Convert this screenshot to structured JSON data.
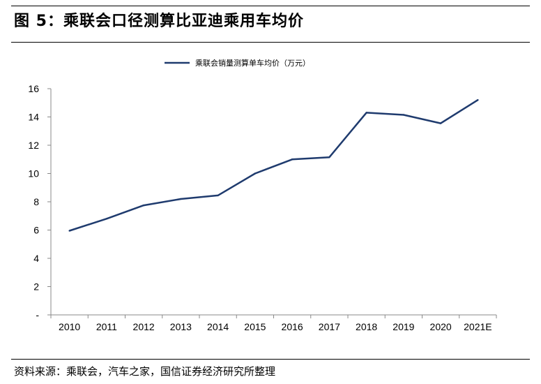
{
  "figure": {
    "title": "图 5：乘联会口径测算比亚迪乘用车均价",
    "source": "资料来源：乘联会，汽车之家，国信证券经济研究所整理"
  },
  "chart_data": {
    "type": "line",
    "categories": [
      "2010",
      "2011",
      "2012",
      "2013",
      "2014",
      "2015",
      "2016",
      "2017",
      "2018",
      "2019",
      "2020",
      "2021E"
    ],
    "series": [
      {
        "name": "乘联会销量测算单车均价（万元）",
        "values": [
          5.95,
          6.8,
          7.75,
          8.2,
          8.45,
          10.0,
          11.0,
          11.15,
          14.3,
          14.15,
          13.55,
          15.2
        ],
        "color": "#1f3b6e"
      }
    ],
    "ylim": [
      0,
      16
    ],
    "yticks": [
      0,
      2,
      4,
      6,
      8,
      10,
      12,
      14,
      16
    ],
    "ytick_labels": [
      "-",
      "2",
      "4",
      "6",
      "8",
      "10",
      "12",
      "14",
      "16"
    ],
    "legend_position": "top-center",
    "grid": false
  }
}
